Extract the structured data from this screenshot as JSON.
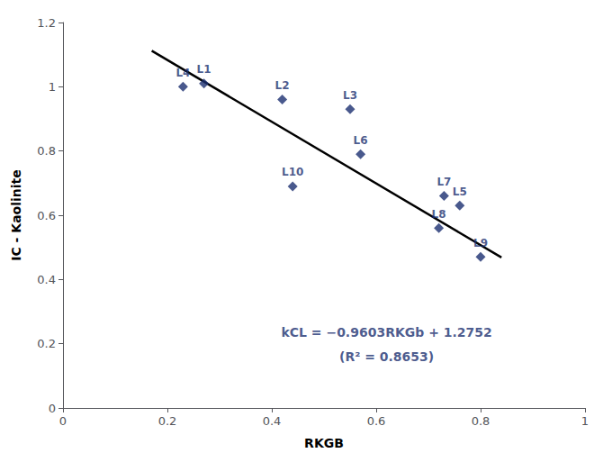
{
  "chart_data": {
    "type": "scatter",
    "x_label": "RKGB",
    "y_label": "IC - Kaolinite",
    "series": [
      {
        "type": "scatter",
        "color": "#1C3070",
        "marker": "diamond",
        "x": [
          0.27,
          0.42,
          0.55,
          0.23,
          0.76,
          0.57,
          0.73,
          0.72,
          0.8,
          0.44
        ],
        "values": [
          1.01,
          0.96,
          0.93,
          1.0,
          0.63,
          0.79,
          0.66,
          0.56,
          0.47,
          0.69
        ],
        "point_labels": [
          "L1",
          "L2",
          "L3",
          "L4",
          "L5",
          "L6",
          "L7",
          "L8",
          "L9",
          "L10"
        ]
      },
      {
        "type": "line",
        "color": "#000000",
        "line_style": "solid",
        "x": [
          0.17,
          0.84
        ],
        "values": [
          1.111949,
          0.468548
        ]
      }
    ],
    "annotations": [
      {
        "text": "kCL = −0.9603RKGb + 1.2752",
        "x": 0.62,
        "y": 0.235
      },
      {
        "text": "(R² = 0.8653)",
        "x": 0.62,
        "y": 0.16
      }
    ],
    "xlim": [
      0,
      1
    ],
    "ylim": [
      0,
      1.2
    ],
    "xticks": [
      0,
      0.2,
      0.4,
      0.6,
      0.8,
      1.0
    ],
    "yticks": [
      0,
      0.2,
      0.4,
      0.6,
      0.8,
      1.0,
      1.2
    ],
    "grid": false
  }
}
